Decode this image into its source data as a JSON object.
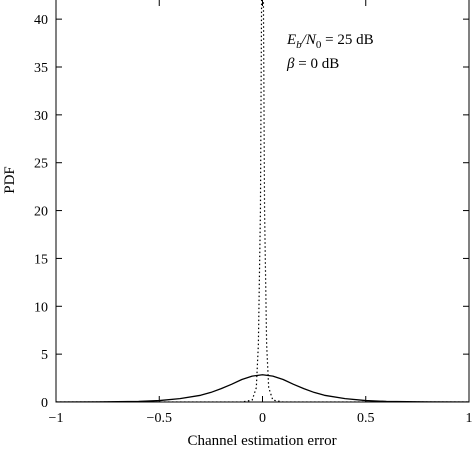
{
  "chart_data": {
    "type": "line",
    "xlabel": "Channel estimation error",
    "ylabel": "PDF",
    "xlim": [
      -1,
      1
    ],
    "ylim": [
      0,
      42
    ],
    "x_ticks": [
      -1,
      -0.5,
      0,
      0.5,
      1
    ],
    "x_tick_labels": [
      "−1",
      "−0.5",
      "0",
      "0.5",
      "1"
    ],
    "y_ticks": [
      0,
      5,
      10,
      15,
      20,
      25,
      30,
      35,
      40
    ],
    "y_tick_labels": [
      "0",
      "5",
      "10",
      "15",
      "20",
      "25",
      "30",
      "35",
      "40"
    ],
    "grid": false,
    "legend": "none",
    "annotations": [
      {
        "base": "E",
        "sub": "b",
        "mid": "/N",
        "sub2": "0",
        "rest": " = 25 dB"
      },
      {
        "base": "β",
        "rest": " = 0 dB"
      }
    ],
    "series": [
      {
        "style": "solid",
        "x": [
          -1,
          -0.8,
          -0.6,
          -0.5,
          -0.4,
          -0.3,
          -0.25,
          -0.2,
          -0.15,
          -0.1,
          -0.05,
          0,
          0.05,
          0.1,
          0.15,
          0.2,
          0.25,
          0.3,
          0.4,
          0.5,
          0.6,
          0.8,
          1
        ],
        "y": [
          0,
          0.01,
          0.06,
          0.15,
          0.35,
          0.7,
          1.0,
          1.4,
          1.85,
          2.35,
          2.7,
          2.85,
          2.7,
          2.35,
          1.85,
          1.4,
          1.0,
          0.7,
          0.35,
          0.15,
          0.06,
          0.01,
          0
        ]
      },
      {
        "style": "dotted",
        "x": [
          -1,
          -0.1,
          -0.05,
          -0.03,
          -0.02,
          -0.01,
          0,
          0.01,
          0.02,
          0.03,
          0.05,
          0.1,
          1
        ],
        "y": [
          0,
          0,
          0.2,
          1.5,
          6,
          20,
          60,
          20,
          6,
          1.5,
          0.2,
          0,
          0
        ]
      }
    ]
  }
}
